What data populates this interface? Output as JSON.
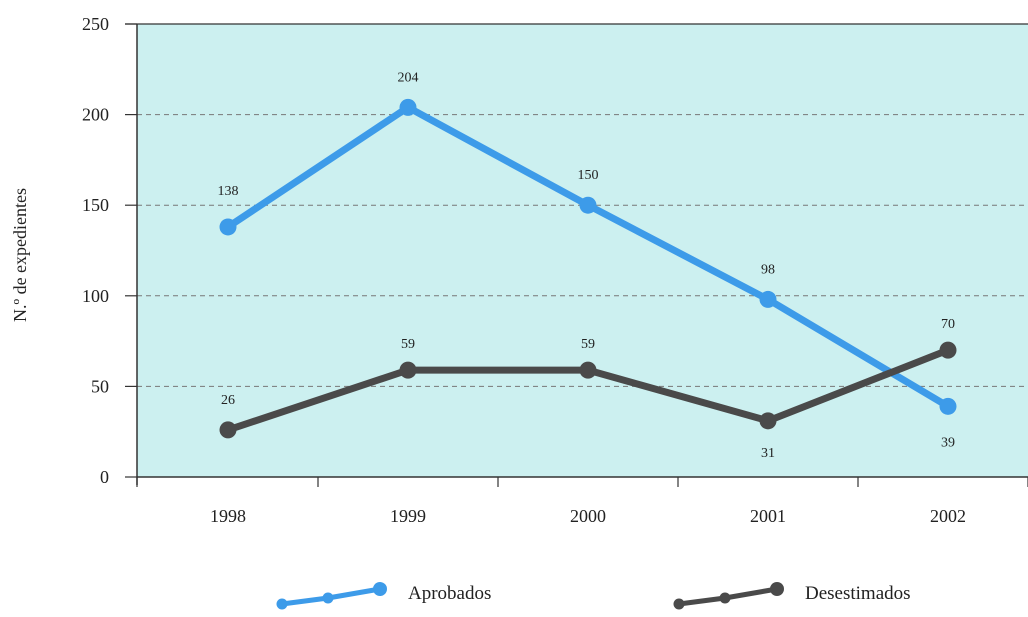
{
  "chart_data": {
    "type": "line",
    "title": "",
    "xlabel": "",
    "ylabel": "N.º de expedientes",
    "x": [
      "1998",
      "1999",
      "2000",
      "2001",
      "2002"
    ],
    "ylim": [
      0,
      250
    ],
    "yticks": [
      0,
      50,
      100,
      150,
      200,
      250
    ],
    "grid": "horizontal-dashed",
    "legend_placement": "bottom",
    "plot_background": "#ccf0f0",
    "series": [
      {
        "name": "Aprobados",
        "color": "#3d9be9",
        "values": [
          138,
          204,
          150,
          98,
          39
        ],
        "labels": [
          "138",
          "204",
          "150",
          "98",
          "39"
        ]
      },
      {
        "name": "Desestimados",
        "color": "#4a4a4a",
        "values": [
          26,
          59,
          59,
          31,
          70
        ],
        "labels": [
          "26",
          "59",
          "59",
          "31",
          "70"
        ]
      }
    ]
  }
}
